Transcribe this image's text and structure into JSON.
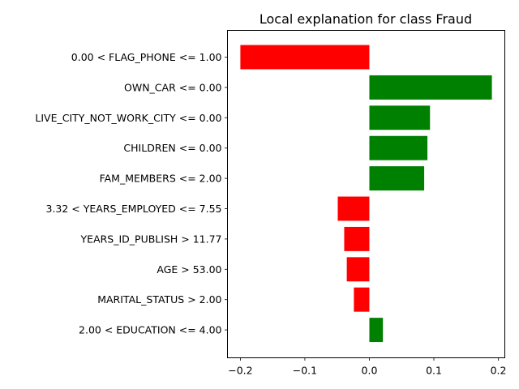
{
  "chart_data": {
    "type": "bar",
    "orientation": "horizontal",
    "title": "Local explanation for class Fraud",
    "xlabel": "",
    "ylabel": "",
    "categories": [
      "0.00 < FLAG_PHONE <= 1.00",
      "OWN_CAR <= 0.00",
      "LIVE_CITY_NOT_WORK_CITY <= 0.00",
      "CHILDREN <= 0.00",
      "FAM_MEMBERS <= 2.00",
      "3.32 < YEARS_EMPLOYED <= 7.55",
      "YEARS_ID_PUBLISH > 11.77",
      "AGE > 53.00",
      "MARITAL_STATUS > 2.00",
      "2.00 < EDUCATION <= 4.00"
    ],
    "values": [
      -0.2,
      0.19,
      0.094,
      0.09,
      0.085,
      -0.049,
      -0.039,
      -0.035,
      -0.024,
      0.021
    ],
    "xlim": [
      -0.22,
      0.21
    ],
    "xticks": [
      -0.2,
      -0.1,
      0.0,
      0.1,
      0.2
    ],
    "xtick_labels": [
      "−0.2",
      "−0.1",
      "0.0",
      "0.1",
      "0.2"
    ],
    "grid": false,
    "colors": {
      "positive": "#008000",
      "negative": "#ff0000"
    }
  }
}
